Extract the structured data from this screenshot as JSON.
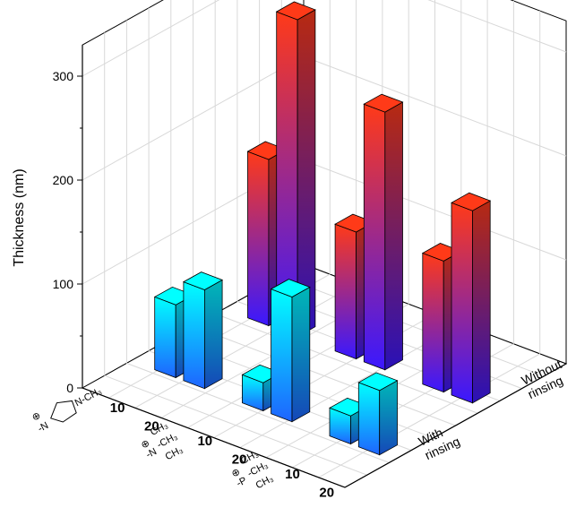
{
  "chart_data": {
    "type": "bar",
    "ylabel": "Thickness (nm)",
    "ylim": [
      0,
      330
    ],
    "y_ticks": [
      0,
      100,
      200,
      300
    ],
    "grid": true,
    "row_categories": [
      "With rinsing",
      "Without rinsing"
    ],
    "row_labels": [
      [
        "With",
        "rinsing"
      ],
      [
        "Without",
        "rinsing"
      ]
    ],
    "groups": [
      {
        "name": "imidazolium",
        "structure_label": "N-CH3 (imidazolium cation)",
        "structure_parts": {
          "charge": "⊕",
          "lead": "-N",
          "tail": "N-CH₃"
        },
        "concentrations": [
          "10",
          "20"
        ]
      },
      {
        "name": "trimethylammonium",
        "structure_label": "-N(CH3)3 (ammonium cation)",
        "structure_parts": {
          "charge": "⊕",
          "lead": "-N",
          "me1": "CH₃",
          "me2": "-CH₃",
          "me3": "CH₃"
        },
        "concentrations": [
          "10",
          "20"
        ]
      },
      {
        "name": "trimethylphosphonium",
        "structure_label": "-P(CH3)3 (phosphonium cation)",
        "structure_parts": {
          "charge": "⊕",
          "lead": "-P",
          "me1": "CH₃",
          "me2": "-CH₃",
          "me3": "CH₃"
        },
        "concentrations": [
          "10",
          "20"
        ]
      }
    ],
    "series": [
      {
        "name": "With rinsing",
        "values": [
          [
            70,
            95
          ],
          [
            27,
            120
          ],
          [
            27,
            62
          ]
        ]
      },
      {
        "name": "Without rinsing",
        "values": [
          [
            160,
            305
          ],
          [
            122,
            248
          ],
          [
            126,
            185
          ]
        ]
      }
    ],
    "colors": {
      "with_top": "#00ffff",
      "with_bottom": "#1e64ff",
      "without_top": "#ff3a18",
      "without_bottom": "#3a18ff"
    }
  }
}
